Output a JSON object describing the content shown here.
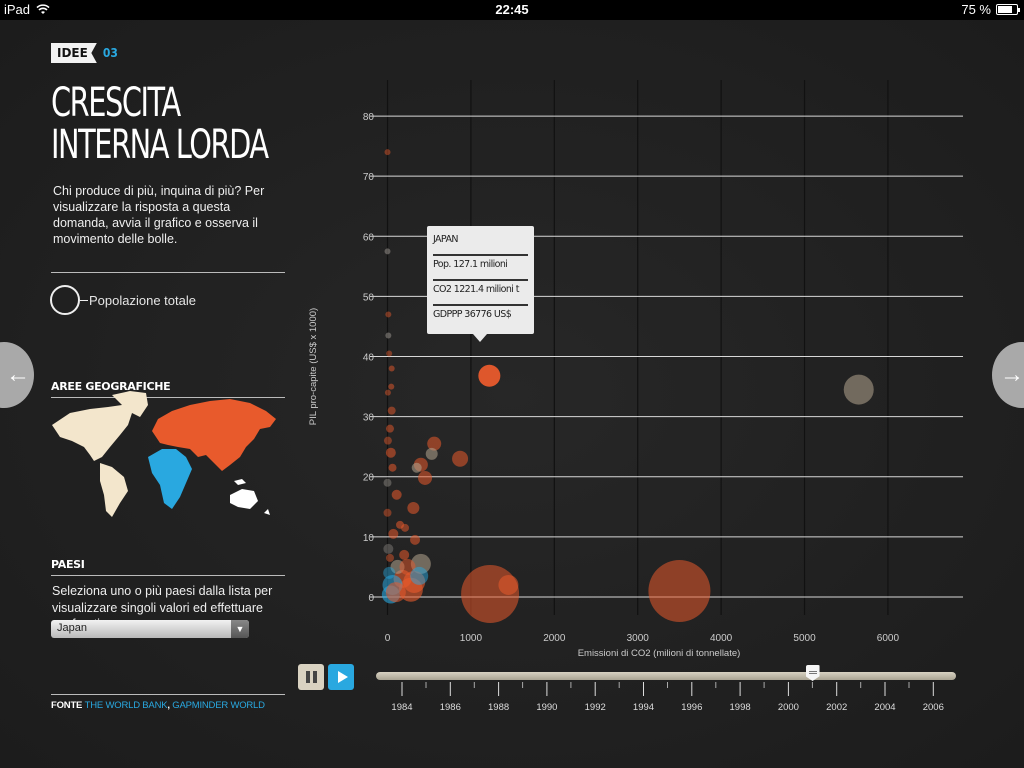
{
  "status": {
    "device": "iPad",
    "time": "22:45",
    "battery": "75 %",
    "battery_level": 0.75
  },
  "badge": {
    "tag": "IDEE",
    "number": "03"
  },
  "title_lines": [
    "CRESCITA",
    "INTERNA LORDA"
  ],
  "intro": "Chi produce di più, inquina di più? Per visualizzare la risposta a questa domanda, avvia il grafico e osserva il movimento delle bolle.",
  "legend": {
    "population_label": "Popolazione totale"
  },
  "regions": {
    "heading": "AREE GEOGRAFICHE",
    "colors": {
      "americas": "#f3e6cc",
      "eurasia": "#e85a2c",
      "africa": "#29a8e0",
      "oceania": "#ffffff"
    }
  },
  "countries": {
    "heading": "PAESI",
    "instructions": "Seleziona uno o più paesi dalla lista per visualizzare singoli valori ed effettuare confronti",
    "selected": "Japan"
  },
  "source": {
    "label": "FONTE",
    "link1": "THE WORLD BANK",
    "separator": ", ",
    "link2": "GAPMINDER WORLD"
  },
  "tooltip": {
    "name": "JAPAN",
    "population": "Pop. 127.1 milioni",
    "co2": "CO2 1221.4 milioni t",
    "gdppp": "GDPPP 36776 US$"
  },
  "timeline": {
    "years": [
      "1984",
      "1986",
      "1988",
      "1990",
      "1992",
      "1994",
      "1996",
      "1998",
      "2000",
      "2002",
      "2004",
      "2006"
    ],
    "current_year": 2001
  },
  "chart_data": {
    "type": "scatter",
    "xlabel": "Emissioni di CO2 (milioni di tonnellate)",
    "ylabel": "PIL pro-capite (US$ x 1000)",
    "xlim": [
      -150,
      6900
    ],
    "ylim": [
      -3,
      86
    ],
    "x_ticks": [
      0,
      1000,
      2000,
      3000,
      4000,
      5000,
      6000
    ],
    "y_ticks": [
      0,
      10,
      20,
      30,
      40,
      50,
      60,
      70,
      80
    ],
    "grid": true,
    "colors": {
      "eurasia": "#e85a2c",
      "americas": "#b5a590",
      "africa": "#29a8e0",
      "other": "#8a8680"
    },
    "points": [
      {
        "x": 1221,
        "y": 36.8,
        "r": 11,
        "c": "eurasia",
        "o": 0.95
      },
      {
        "x": 5650,
        "y": 34.5,
        "r": 15,
        "c": "americas",
        "o": 0.55
      },
      {
        "x": 1230,
        "y": 0.5,
        "r": 29,
        "c": "eurasia",
        "o": 0.55
      },
      {
        "x": 3500,
        "y": 1.0,
        "r": 31,
        "c": "eurasia",
        "o": 0.55
      },
      {
        "x": 1450,
        "y": 2.0,
        "r": 10,
        "c": "eurasia",
        "o": 0.55
      },
      {
        "x": 870,
        "y": 23.0,
        "r": 8,
        "c": "eurasia",
        "o": 0.55
      },
      {
        "x": 560,
        "y": 25.5,
        "r": 7,
        "c": "eurasia",
        "o": 0.55
      },
      {
        "x": 530,
        "y": 23.8,
        "r": 6,
        "c": "americas",
        "o": 0.55
      },
      {
        "x": 400,
        "y": 22.0,
        "r": 7,
        "c": "eurasia",
        "o": 0.55
      },
      {
        "x": 450,
        "y": 19.8,
        "r": 7,
        "c": "eurasia",
        "o": 0.55
      },
      {
        "x": 350,
        "y": 21.5,
        "r": 5,
        "c": "americas",
        "o": 0.55
      },
      {
        "x": 310,
        "y": 14.8,
        "r": 6,
        "c": "eurasia",
        "o": 0.55
      },
      {
        "x": 400,
        "y": 5.5,
        "r": 10,
        "c": "americas",
        "o": 0.55
      },
      {
        "x": 320,
        "y": 2.5,
        "r": 11,
        "c": "eurasia",
        "o": 0.6
      },
      {
        "x": 280,
        "y": 1.2,
        "r": 12,
        "c": "eurasia",
        "o": 0.6
      },
      {
        "x": 180,
        "y": 3.0,
        "r": 9,
        "c": "eurasia",
        "o": 0.6
      },
      {
        "x": 120,
        "y": 5.0,
        "r": 7,
        "c": "americas",
        "o": 0.55
      },
      {
        "x": 60,
        "y": 2.0,
        "r": 10,
        "c": "africa",
        "o": 0.55
      },
      {
        "x": 40,
        "y": 0.4,
        "r": 9,
        "c": "africa",
        "o": 0.6
      },
      {
        "x": 100,
        "y": 0.8,
        "r": 10,
        "c": "eurasia",
        "o": 0.55
      },
      {
        "x": 200,
        "y": 7.0,
        "r": 5,
        "c": "eurasia",
        "o": 0.55
      },
      {
        "x": 330,
        "y": 9.5,
        "r": 5,
        "c": "eurasia",
        "o": 0.55
      },
      {
        "x": 150,
        "y": 12.0,
        "r": 4,
        "c": "eurasia",
        "o": 0.55
      },
      {
        "x": 70,
        "y": 10.5,
        "r": 5,
        "c": "eurasia",
        "o": 0.55
      },
      {
        "x": 110,
        "y": 17.0,
        "r": 5,
        "c": "eurasia",
        "o": 0.55
      },
      {
        "x": 60,
        "y": 21.5,
        "r": 4,
        "c": "eurasia",
        "o": 0.55
      },
      {
        "x": 40,
        "y": 24.0,
        "r": 5,
        "c": "eurasia",
        "o": 0.55
      },
      {
        "x": 30,
        "y": 28.0,
        "r": 4,
        "c": "eurasia",
        "o": 0.5
      },
      {
        "x": 50,
        "y": 31.0,
        "r": 4,
        "c": "eurasia",
        "o": 0.5
      },
      {
        "x": 45,
        "y": 35.0,
        "r": 3,
        "c": "eurasia",
        "o": 0.5
      },
      {
        "x": 50,
        "y": 38.0,
        "r": 3,
        "c": "eurasia",
        "o": 0.5
      },
      {
        "x": 20,
        "y": 40.5,
        "r": 3,
        "c": "eurasia",
        "o": 0.45
      },
      {
        "x": 10,
        "y": 43.5,
        "r": 3,
        "c": "other",
        "o": 0.6
      },
      {
        "x": 10,
        "y": 47.0,
        "r": 3,
        "c": "eurasia",
        "o": 0.45
      },
      {
        "x": 0,
        "y": 57.5,
        "r": 3,
        "c": "other",
        "o": 0.6
      },
      {
        "x": 0,
        "y": 74.0,
        "r": 3,
        "c": "eurasia",
        "o": 0.45
      },
      {
        "x": 5,
        "y": 34.0,
        "r": 3,
        "c": "eurasia",
        "o": 0.45
      },
      {
        "x": 5,
        "y": 26.0,
        "r": 4,
        "c": "eurasia",
        "o": 0.45
      },
      {
        "x": 0,
        "y": 19.0,
        "r": 4,
        "c": "other",
        "o": 0.5
      },
      {
        "x": 0,
        "y": 14.0,
        "r": 4,
        "c": "eurasia",
        "o": 0.45
      },
      {
        "x": 10,
        "y": 8.0,
        "r": 5,
        "c": "other",
        "o": 0.45
      },
      {
        "x": 20,
        "y": 4.0,
        "r": 6,
        "c": "africa",
        "o": 0.45
      },
      {
        "x": 30,
        "y": 6.5,
        "r": 4,
        "c": "eurasia",
        "o": 0.45
      },
      {
        "x": 240,
        "y": 5.0,
        "r": 8,
        "c": "eurasia",
        "o": 0.5
      },
      {
        "x": 380,
        "y": 3.5,
        "r": 9,
        "c": "africa",
        "o": 0.5
      },
      {
        "x": 210,
        "y": 11.5,
        "r": 4,
        "c": "eurasia",
        "o": 0.5
      }
    ]
  }
}
